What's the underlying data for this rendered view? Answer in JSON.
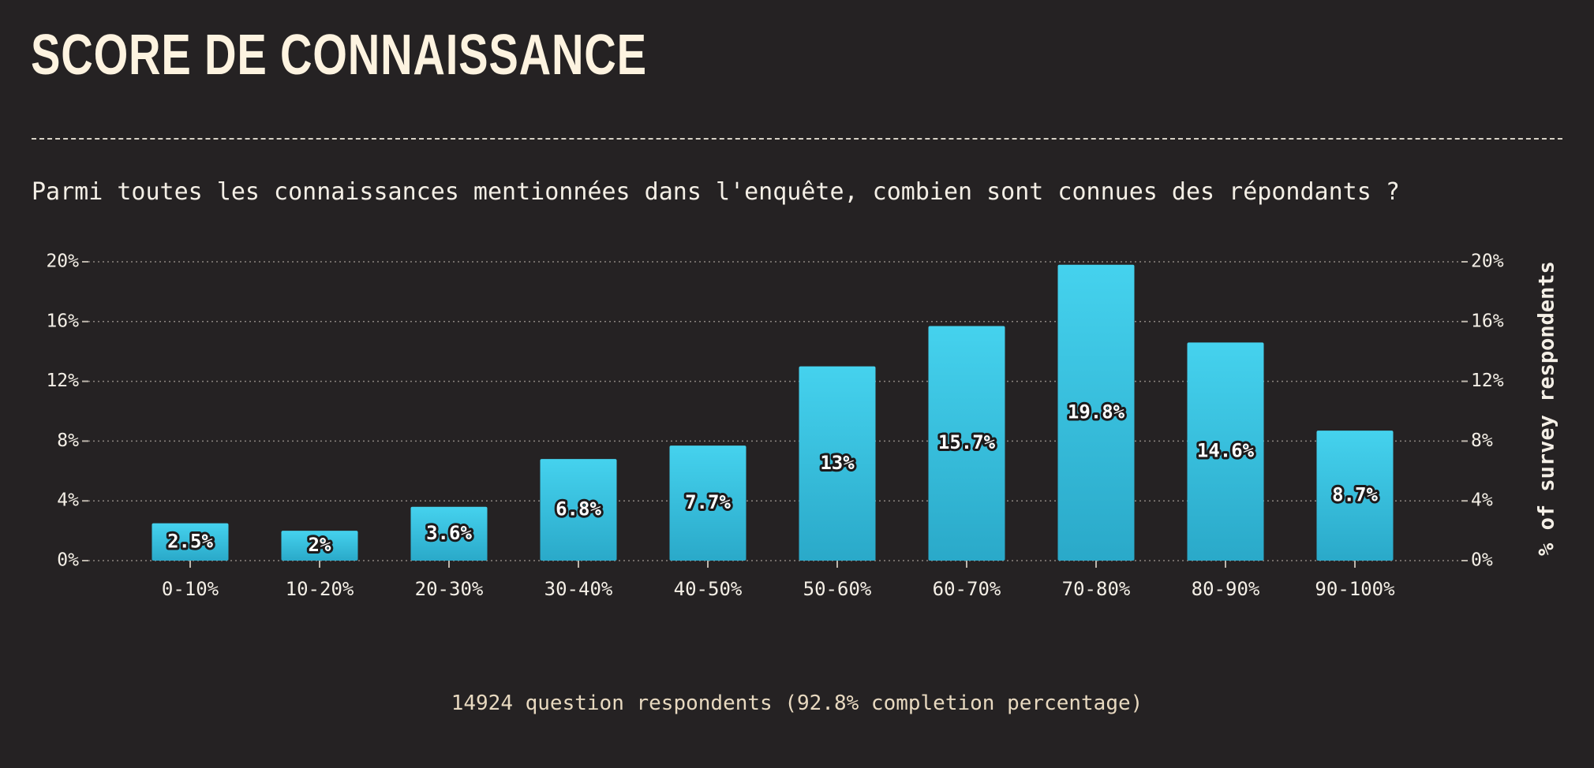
{
  "header": {
    "title": "SCORE DE CONNAISSANCE",
    "subtitle": "Parmi toutes les connaissances mentionnées dans l'enquête, combien sont connues des répondants ?"
  },
  "footer": {
    "text": "14924 question respondents (92.8% completion percentage)"
  },
  "colors": {
    "background": "#252223",
    "bar_top": "#45d2ee",
    "bar_bottom": "#2aa9c9",
    "text": "#f4efe6"
  },
  "chart_data": {
    "type": "bar",
    "categories": [
      "0-10%",
      "10-20%",
      "20-30%",
      "30-40%",
      "40-50%",
      "50-60%",
      "60-70%",
      "70-80%",
      "80-90%",
      "90-100%"
    ],
    "values": [
      2.5,
      2,
      3.6,
      6.8,
      7.7,
      13,
      15.7,
      19.8,
      14.6,
      8.7
    ],
    "data_labels": [
      "2.5%",
      "2%",
      "3.6%",
      "6.8%",
      "7.7%",
      "13%",
      "15.7%",
      "19.8%",
      "14.6%",
      "8.7%"
    ],
    "yticks": [
      0,
      4,
      8,
      12,
      16,
      20
    ],
    "ytick_labels": [
      "0%",
      "4%",
      "8%",
      "12%",
      "16%",
      "20%"
    ],
    "ylim": [
      0,
      20
    ],
    "ylabel_right": "% of survey respondents",
    "grid": true
  }
}
